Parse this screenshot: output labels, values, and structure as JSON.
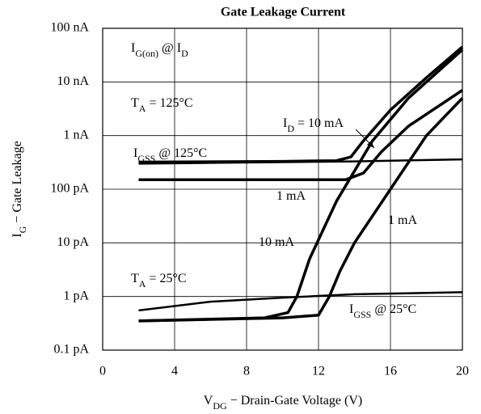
{
  "chart_data": {
    "type": "line",
    "title": "Gate Leakage Current",
    "xlabel": [
      "V",
      "DG",
      " − Drain-Gate Voltage (V)"
    ],
    "ylabel": [
      "I",
      "G",
      " − Gate Leakage"
    ],
    "xlim": [
      0,
      20
    ],
    "xticks": [
      0,
      4,
      8,
      12,
      16,
      20
    ],
    "ylim": [
      0.1,
      100000
    ],
    "yscale": "log",
    "yticks": [
      {
        "value": 100000,
        "label": "100 nA"
      },
      {
        "value": 10000,
        "label": "10 nA"
      },
      {
        "value": 1000,
        "label": "1 nA"
      },
      {
        "value": 100,
        "label": "100 pA"
      },
      {
        "value": 10,
        "label": "10 pA"
      },
      {
        "value": 1,
        "label": "1 pA"
      },
      {
        "value": 0.1,
        "label": "0.1 pA"
      }
    ],
    "grid": true,
    "series": [
      {
        "color": "#000000",
        "x": [
          2,
          6,
          10,
          14,
          20
        ],
        "values": [
          300,
          310,
          320,
          330,
          360
        ]
      },
      {
        "color": "#000000",
        "x": [
          2,
          10,
          13,
          13.8,
          14.5,
          16,
          18,
          20
        ],
        "values": [
          320,
          330,
          340,
          400,
          800,
          3000,
          12000,
          45000
        ]
      },
      {
        "color": "#000000",
        "x": [
          2,
          10,
          13.5,
          14.5,
          15.5,
          17,
          20
        ],
        "values": [
          150,
          150,
          150,
          200,
          500,
          1500,
          7000
        ]
      },
      {
        "color": "#000000",
        "x": [
          2,
          9,
          10.3,
          10.8,
          11.5,
          13,
          15,
          17,
          20
        ],
        "values": [
          0.35,
          0.4,
          0.5,
          1,
          5,
          60,
          800,
          5000,
          40000
        ]
      },
      {
        "color": "#000000",
        "x": [
          2,
          10,
          12,
          12.6,
          13.2,
          14,
          16,
          18,
          20
        ],
        "values": [
          0.35,
          0.4,
          0.45,
          1,
          3,
          10,
          100,
          1000,
          5000
        ]
      },
      {
        "color": "#000000",
        "x": [
          2,
          6,
          10,
          14,
          20
        ],
        "values": [
          0.55,
          0.8,
          0.95,
          1.1,
          1.2
        ]
      }
    ],
    "annotations": [
      [
        "I",
        "G(on)",
        " @ I",
        "D"
      ],
      [
        "T",
        "A",
        " = 125°C"
      ],
      [
        "I",
        "D",
        " = 10 mA"
      ],
      [
        "I",
        "GSS",
        " @ 125°C"
      ],
      [
        "1 mA"
      ],
      [
        "1 mA"
      ],
      [
        "10 mA"
      ],
      [
        "T",
        "A",
        " = 25°C"
      ],
      [
        "I",
        "GSS",
        " @ 25°C"
      ]
    ]
  }
}
